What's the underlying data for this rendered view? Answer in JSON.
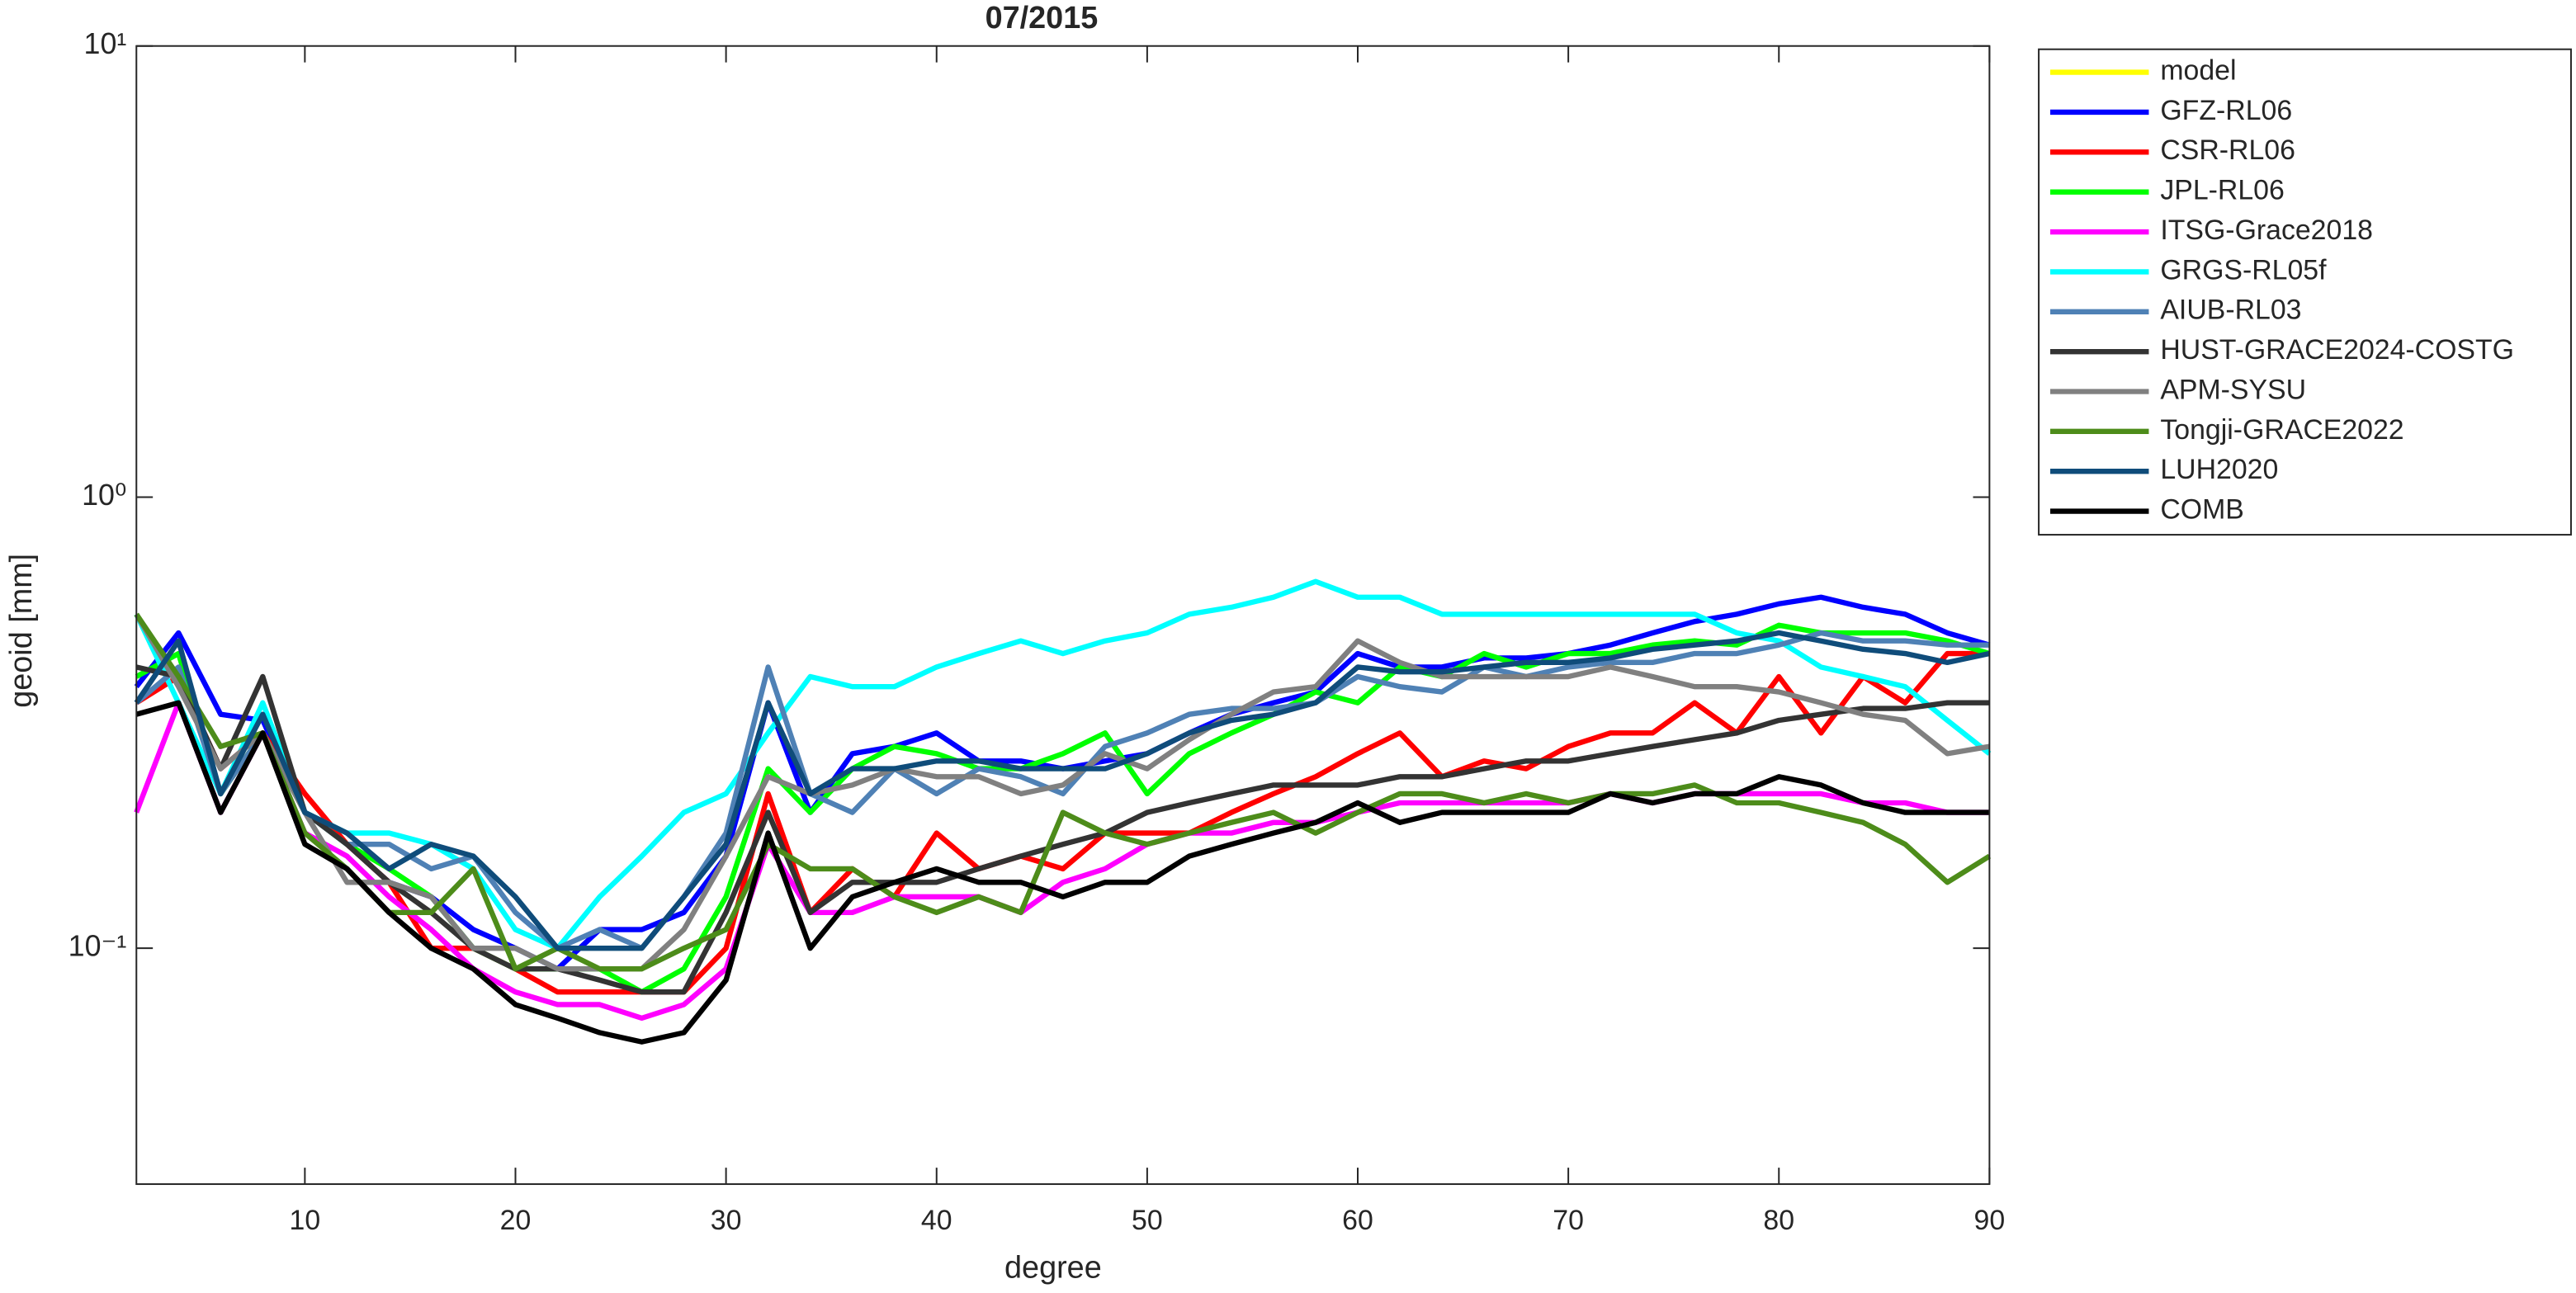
{
  "chart_data": {
    "type": "line",
    "title": "07/2015",
    "x_label": "degree",
    "y_label": "geoid [mm]",
    "log_y": true,
    "legend": "northeastoutside",
    "xlim": [
      2,
      90
    ],
    "xticks": [
      10,
      20,
      30,
      40,
      50,
      60,
      70,
      80,
      90
    ],
    "ylim": [
      0.03,
      10
    ],
    "yticks": [
      {
        "value": 0.1,
        "label": "10⁻¹"
      },
      {
        "value": 1,
        "label": "10⁰"
      },
      {
        "value": 10,
        "label": "10¹"
      }
    ],
    "x": [
      2,
      4,
      6,
      8,
      10,
      12,
      14,
      16,
      18,
      20,
      22,
      24,
      26,
      28,
      30,
      32,
      34,
      36,
      38,
      40,
      42,
      44,
      46,
      48,
      50,
      52,
      54,
      56,
      58,
      60,
      62,
      64,
      66,
      68,
      70,
      72,
      74,
      76,
      78,
      80,
      82,
      84,
      86,
      88,
      90
    ],
    "series": [
      {
        "name": "model",
        "color": "#ffff00",
        "values": [
          null,
          null,
          null,
          null,
          null,
          null,
          null,
          null,
          null,
          null,
          null,
          null,
          null,
          null,
          null,
          null,
          null,
          null,
          null,
          null,
          null,
          null,
          null,
          null,
          null,
          null,
          null,
          null,
          null,
          null,
          null,
          null,
          null,
          null,
          null,
          null,
          null,
          null,
          null,
          null,
          null,
          null,
          null,
          null,
          null
        ]
      },
      {
        "name": "GFZ-RL06",
        "color": "#0000ff",
        "values": [
          0.38,
          0.5,
          0.33,
          0.32,
          0.2,
          0.17,
          0.14,
          0.13,
          0.11,
          0.1,
          0.09,
          0.11,
          0.11,
          0.12,
          0.16,
          0.35,
          0.2,
          0.27,
          0.28,
          0.3,
          0.26,
          0.26,
          0.25,
          0.26,
          0.27,
          0.3,
          0.33,
          0.35,
          0.37,
          0.45,
          0.42,
          0.42,
          0.44,
          0.44,
          0.45,
          0.47,
          0.5,
          0.53,
          0.55,
          0.58,
          0.6,
          0.57,
          0.55,
          0.5,
          0.47
        ]
      },
      {
        "name": "CSR-RL06",
        "color": "#ff0000",
        "values": [
          0.35,
          0.4,
          0.25,
          0.3,
          0.22,
          0.17,
          0.14,
          0.1,
          0.1,
          0.09,
          0.08,
          0.08,
          0.08,
          0.08,
          0.1,
          0.22,
          0.12,
          0.15,
          0.13,
          0.18,
          0.15,
          0.16,
          0.15,
          0.18,
          0.18,
          0.18,
          0.2,
          0.22,
          0.24,
          0.27,
          0.3,
          0.24,
          0.26,
          0.25,
          0.28,
          0.3,
          0.3,
          0.35,
          0.3,
          0.4,
          0.3,
          0.4,
          0.35,
          0.45,
          0.45
        ]
      },
      {
        "name": "JPL-RL06",
        "color": "#00ff00",
        "values": [
          0.4,
          0.45,
          0.22,
          0.3,
          0.2,
          0.17,
          0.15,
          0.13,
          0.1,
          0.09,
          0.09,
          0.09,
          0.08,
          0.09,
          0.13,
          0.25,
          0.2,
          0.25,
          0.28,
          0.27,
          0.25,
          0.25,
          0.27,
          0.3,
          0.22,
          0.27,
          0.3,
          0.33,
          0.37,
          0.35,
          0.42,
          0.4,
          0.45,
          0.42,
          0.45,
          0.45,
          0.47,
          0.48,
          0.47,
          0.52,
          0.5,
          0.5,
          0.5,
          0.48,
          0.45
        ]
      },
      {
        "name": "ITSG-Grace2018",
        "color": "#ff00ff",
        "values": [
          0.2,
          0.35,
          0.2,
          0.3,
          0.18,
          0.16,
          0.13,
          0.11,
          0.09,
          0.08,
          0.075,
          0.075,
          0.07,
          0.075,
          0.09,
          0.17,
          0.12,
          0.12,
          0.13,
          0.13,
          0.13,
          0.12,
          0.14,
          0.15,
          0.17,
          0.18,
          0.18,
          0.19,
          0.19,
          0.2,
          0.21,
          0.21,
          0.21,
          0.21,
          0.21,
          0.22,
          0.21,
          0.22,
          0.22,
          0.22,
          0.22,
          0.21,
          0.21,
          0.2,
          0.2
        ]
      },
      {
        "name": "GRGS-RL05f",
        "color": "#00ffff",
        "values": [
          0.55,
          0.35,
          0.22,
          0.35,
          0.2,
          0.18,
          0.18,
          0.17,
          0.15,
          0.11,
          0.1,
          0.13,
          0.16,
          0.2,
          0.22,
          0.3,
          0.4,
          0.38,
          0.38,
          0.42,
          0.45,
          0.48,
          0.45,
          0.48,
          0.5,
          0.55,
          0.57,
          0.6,
          0.65,
          0.6,
          0.6,
          0.55,
          0.55,
          0.55,
          0.55,
          0.55,
          0.55,
          0.55,
          0.5,
          0.48,
          0.42,
          0.4,
          0.38,
          0.32,
          0.27
        ]
      },
      {
        "name": "AIUB-RL03",
        "color": "#4f81b5",
        "values": [
          0.35,
          0.42,
          0.22,
          0.3,
          0.2,
          0.17,
          0.17,
          0.15,
          0.16,
          0.12,
          0.1,
          0.11,
          0.1,
          0.13,
          0.18,
          0.42,
          0.22,
          0.2,
          0.25,
          0.22,
          0.25,
          0.24,
          0.22,
          0.28,
          0.3,
          0.33,
          0.34,
          0.34,
          0.35,
          0.4,
          0.38,
          0.37,
          0.42,
          0.4,
          0.42,
          0.43,
          0.43,
          0.45,
          0.45,
          0.47,
          0.5,
          0.48,
          0.48,
          0.47,
          0.47
        ]
      },
      {
        "name": "HUST-GRACE2024-COSTG",
        "color": "#333333",
        "values": [
          0.42,
          0.4,
          0.25,
          0.4,
          0.2,
          0.17,
          0.14,
          0.12,
          0.1,
          0.09,
          0.09,
          0.085,
          0.08,
          0.08,
          0.12,
          0.2,
          0.12,
          0.14,
          0.14,
          0.14,
          0.15,
          0.16,
          0.17,
          0.18,
          0.2,
          0.21,
          0.22,
          0.23,
          0.23,
          0.23,
          0.24,
          0.24,
          0.25,
          0.26,
          0.26,
          0.27,
          0.28,
          0.29,
          0.3,
          0.32,
          0.33,
          0.34,
          0.34,
          0.35,
          0.35
        ]
      },
      {
        "name": "APM-SYSU",
        "color": "#808080",
        "values": [
          0.55,
          0.38,
          0.25,
          0.3,
          0.2,
          0.14,
          0.14,
          0.13,
          0.1,
          0.1,
          0.09,
          0.09,
          0.09,
          0.11,
          0.16,
          0.24,
          0.22,
          0.23,
          0.25,
          0.24,
          0.24,
          0.22,
          0.23,
          0.27,
          0.25,
          0.29,
          0.33,
          0.37,
          0.38,
          0.48,
          0.43,
          0.4,
          0.4,
          0.4,
          0.4,
          0.42,
          0.4,
          0.38,
          0.38,
          0.37,
          0.35,
          0.33,
          0.32,
          0.27,
          0.28
        ]
      },
      {
        "name": "Tongji-GRACE2022",
        "color": "#4d8c1a",
        "values": [
          0.55,
          0.4,
          0.28,
          0.3,
          0.18,
          0.15,
          0.12,
          0.12,
          0.15,
          0.09,
          0.1,
          0.09,
          0.09,
          0.1,
          0.11,
          0.17,
          0.15,
          0.15,
          0.13,
          0.12,
          0.13,
          0.12,
          0.2,
          0.18,
          0.17,
          0.18,
          0.19,
          0.2,
          0.18,
          0.2,
          0.22,
          0.22,
          0.21,
          0.22,
          0.21,
          0.22,
          0.22,
          0.23,
          0.21,
          0.21,
          0.2,
          0.19,
          0.17,
          0.14,
          0.16
        ]
      },
      {
        "name": "LUH2020",
        "color": "#0f4c7a",
        "values": [
          0.35,
          0.48,
          0.22,
          0.33,
          0.2,
          0.18,
          0.15,
          0.17,
          0.16,
          0.13,
          0.1,
          0.1,
          0.1,
          0.13,
          0.17,
          0.35,
          0.22,
          0.25,
          0.25,
          0.26,
          0.26,
          0.25,
          0.25,
          0.25,
          0.27,
          0.3,
          0.32,
          0.33,
          0.35,
          0.42,
          0.41,
          0.41,
          0.42,
          0.43,
          0.43,
          0.44,
          0.46,
          0.47,
          0.48,
          0.5,
          0.48,
          0.46,
          0.45,
          0.43,
          0.45
        ]
      },
      {
        "name": "COMB",
        "color": "#000000",
        "values": [
          0.33,
          0.35,
          0.2,
          0.3,
          0.17,
          0.15,
          0.12,
          0.1,
          0.09,
          0.075,
          0.07,
          0.065,
          0.062,
          0.065,
          0.085,
          0.18,
          0.1,
          0.13,
          0.14,
          0.15,
          0.14,
          0.14,
          0.13,
          0.14,
          0.14,
          0.16,
          0.17,
          0.18,
          0.19,
          0.21,
          0.19,
          0.2,
          0.2,
          0.2,
          0.2,
          0.22,
          0.21,
          0.22,
          0.22,
          0.24,
          0.23,
          0.21,
          0.2,
          0.2,
          0.2
        ]
      }
    ]
  }
}
